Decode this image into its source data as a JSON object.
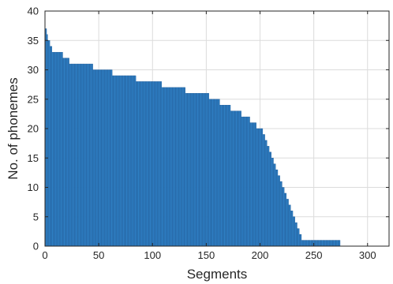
{
  "chart_data": {
    "type": "bar",
    "title": "",
    "xlabel": "Segments",
    "ylabel": "No. of phonemes",
    "xlim": [
      0,
      320
    ],
    "ylim": [
      0,
      40
    ],
    "xticks": [
      0,
      50,
      100,
      150,
      200,
      250,
      300
    ],
    "yticks": [
      0,
      5,
      10,
      15,
      20,
      25,
      30,
      35,
      40
    ],
    "grid": true,
    "bar_color": "#2f7fc4",
    "bar_edge_color": "#1e5a96",
    "x_start": 1,
    "values": [
      37,
      36,
      35,
      35,
      34,
      34,
      33,
      33,
      33,
      33,
      33,
      33,
      33,
      33,
      33,
      33,
      32,
      32,
      32,
      32,
      32,
      32,
      31,
      31,
      31,
      31,
      31,
      31,
      31,
      31,
      31,
      31,
      31,
      31,
      31,
      31,
      31,
      31,
      31,
      31,
      31,
      31,
      31,
      31,
      30,
      30,
      30,
      30,
      30,
      30,
      30,
      30,
      30,
      30,
      30,
      30,
      30,
      30,
      30,
      30,
      30,
      30,
      29,
      29,
      29,
      29,
      29,
      29,
      29,
      29,
      29,
      29,
      29,
      29,
      29,
      29,
      29,
      29,
      29,
      29,
      29,
      29,
      29,
      29,
      28,
      28,
      28,
      28,
      28,
      28,
      28,
      28,
      28,
      28,
      28,
      28,
      28,
      28,
      28,
      28,
      28,
      28,
      28,
      28,
      28,
      28,
      28,
      28,
      27,
      27,
      27,
      27,
      27,
      27,
      27,
      27,
      27,
      27,
      27,
      27,
      27,
      27,
      27,
      27,
      27,
      27,
      27,
      27,
      27,
      27,
      26,
      26,
      26,
      26,
      26,
      26,
      26,
      26,
      26,
      26,
      26,
      26,
      26,
      26,
      26,
      26,
      26,
      26,
      26,
      26,
      26,
      26,
      25,
      25,
      25,
      25,
      25,
      25,
      25,
      25,
      25,
      25,
      24,
      24,
      24,
      24,
      24,
      24,
      24,
      24,
      24,
      24,
      23,
      23,
      23,
      23,
      23,
      23,
      23,
      23,
      23,
      23,
      22,
      22,
      22,
      22,
      22,
      22,
      22,
      22,
      21,
      21,
      21,
      21,
      21,
      21,
      20,
      20,
      20,
      20,
      20,
      20,
      19,
      19,
      18,
      18,
      17,
      17,
      16,
      16,
      15,
      15,
      14,
      14,
      13,
      13,
      12,
      12,
      11,
      11,
      10,
      10,
      9,
      9,
      8,
      8,
      7,
      7,
      6,
      6,
      5,
      5,
      4,
      4,
      3,
      3,
      2,
      2,
      1,
      1,
      1,
      1,
      1,
      1,
      1,
      1,
      1,
      1,
      1,
      1,
      1,
      1,
      1,
      1,
      1,
      1,
      1,
      1,
      1,
      1,
      1,
      1,
      1,
      1,
      1,
      1,
      1,
      1,
      1,
      1,
      1,
      1,
      1,
      1
    ]
  }
}
